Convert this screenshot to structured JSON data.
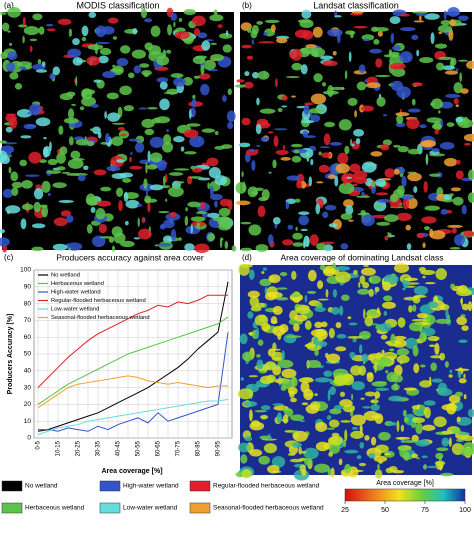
{
  "panels": {
    "a": {
      "label": "(a)",
      "title": "MODIS classification"
    },
    "b": {
      "label": "(b)",
      "title": "Landsat classification"
    },
    "c": {
      "label": "(c)"
    },
    "d": {
      "label": "(d)",
      "title": "Area coverage of dominating Landsat class"
    }
  },
  "chart_data": {
    "type": "line",
    "title": "Producers accuracy against area cover",
    "x_label": "Area coverage [%]",
    "y_label": "Producers Accuracy [%]",
    "categories": [
      "0-5",
      null,
      "10-15",
      null,
      "20-25",
      null,
      "30-35",
      null,
      "40-45",
      null,
      "50-55",
      null,
      "60-65",
      null,
      "70-75",
      null,
      "80-85",
      null,
      "90-95",
      null
    ],
    "ylim": [
      0,
      100
    ],
    "yticks": [
      0,
      10,
      20,
      30,
      40,
      50,
      60,
      70,
      80,
      90,
      100
    ],
    "grid": true,
    "series": [
      {
        "name": "No wetland",
        "color": "#000000",
        "values": [
          4,
          5,
          7,
          9,
          11,
          13,
          15,
          18,
          21,
          24,
          27,
          30,
          34,
          38,
          42,
          47,
          53,
          58,
          63,
          93
        ]
      },
      {
        "name": "Herbaceous wetland",
        "color": "#5cc34a",
        "values": [
          20,
          24,
          28,
          32,
          35,
          38,
          41,
          44,
          47,
          50,
          52,
          54,
          56,
          58,
          60,
          62,
          64,
          66,
          68,
          72
        ]
      },
      {
        "name": "High-water wetland",
        "color": "#3355cc",
        "values": [
          5,
          5,
          4,
          6,
          5,
          4,
          7,
          5,
          8,
          10,
          12,
          9,
          15,
          10,
          12,
          14,
          16,
          18,
          20,
          63
        ]
      },
      {
        "name": "Regular-flooded herbaceous wetland",
        "color": "#e0202a",
        "values": [
          30,
          36,
          42,
          48,
          53,
          58,
          62,
          65,
          68,
          71,
          74,
          76,
          79,
          78,
          81,
          80,
          82,
          85,
          85,
          85
        ]
      },
      {
        "name": "Low-water wetland",
        "color": "#66dddd",
        "values": [
          2,
          4,
          6,
          7,
          8,
          10,
          11,
          12,
          13,
          14,
          15,
          16,
          17,
          18,
          19,
          20,
          21,
          22,
          22,
          23
        ]
      },
      {
        "name": "Seasonal-flooded herbaceous wetland",
        "color": "#f0a030",
        "values": [
          18,
          22,
          26,
          30,
          32,
          33,
          34,
          35,
          36,
          37,
          36,
          34,
          33,
          32,
          33,
          32,
          31,
          30,
          31,
          31
        ]
      }
    ]
  },
  "colorbar": {
    "title": "Area coverage [%]",
    "lim": [
      25,
      100
    ],
    "ticks": [
      25,
      50,
      75,
      100
    ]
  }
}
